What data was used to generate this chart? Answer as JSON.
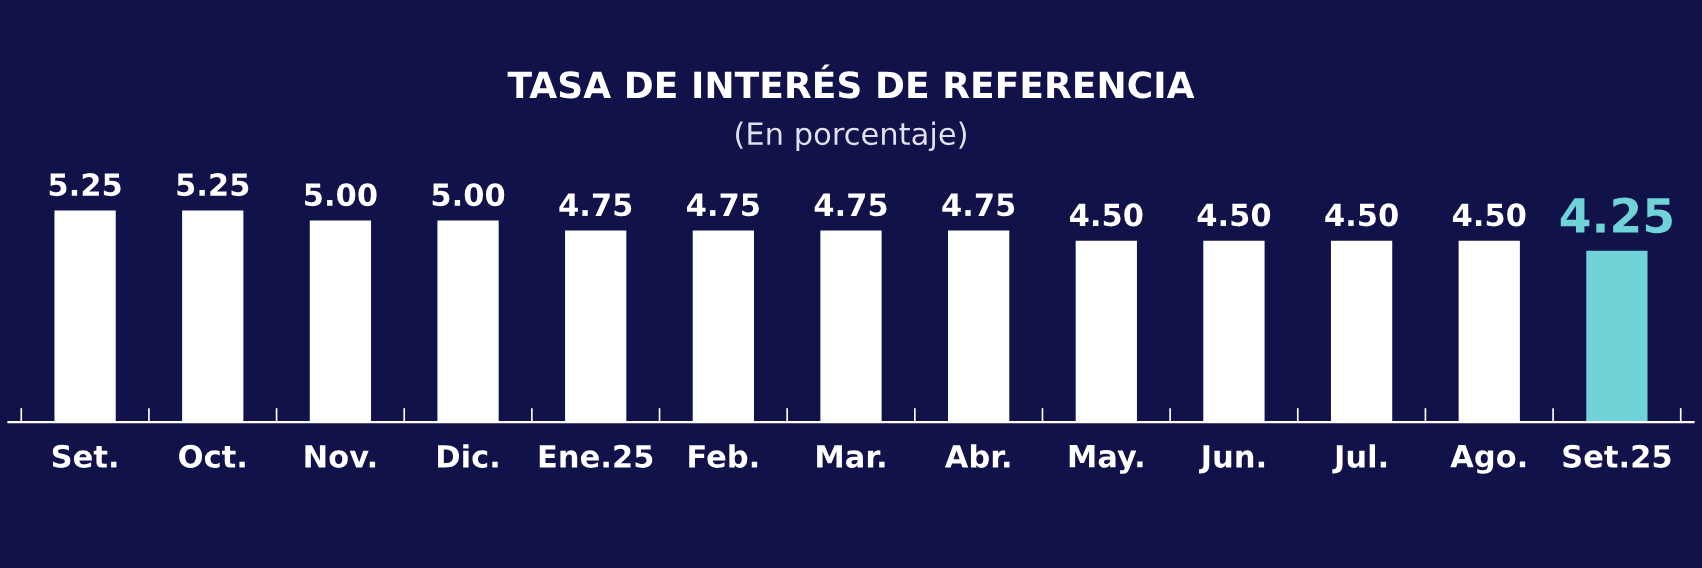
{
  "chart_data": {
    "type": "bar",
    "title": "TASA DE INTERÉS DE REFERENCIA",
    "subtitle": "(En porcentaje)",
    "categories": [
      "Set.",
      "Oct.",
      "Nov.",
      "Dic.",
      "Ene.25",
      "Feb.",
      "Mar.",
      "Abr.",
      "May.",
      "Jun.",
      "Jul.",
      "Ago.",
      "Set.25"
    ],
    "values": [
      5.25,
      5.25,
      5.0,
      5.0,
      4.75,
      4.75,
      4.75,
      4.75,
      4.5,
      4.5,
      4.5,
      4.5,
      4.25
    ],
    "colors": [
      "#ffffff",
      "#ffffff",
      "#ffffff",
      "#ffffff",
      "#ffffff",
      "#ffffff",
      "#ffffff",
      "#ffffff",
      "#ffffff",
      "#ffffff",
      "#ffffff",
      "#ffffff",
      "#6fd3d8"
    ],
    "value_labels": [
      "5.25",
      "5.25",
      "5.00",
      "5.00",
      "4.75",
      "4.75",
      "4.75",
      "4.75",
      "4.50",
      "4.50",
      "4.50",
      "4.50",
      "4.25"
    ],
    "grid": false,
    "legend": false
  }
}
